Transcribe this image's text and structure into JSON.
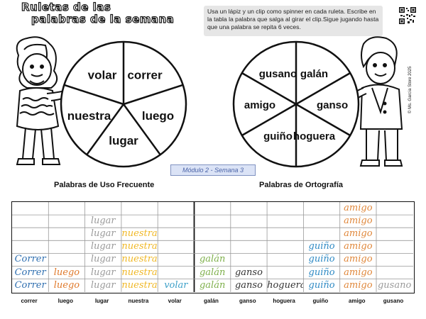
{
  "title": {
    "line1": "Ruletas de las",
    "line2": "palabras de la semana"
  },
  "instructions": "Usa un lápiz y un clip como spinner en cada ruleta. Escribe en la tabla la palabra que salga al girar el clip.Sigue jugando hasta que una palabra se repita 6 veces.",
  "copyright": "© Ms. García Store 2025",
  "badge": "Módulo 2 - Semana 3",
  "headings": {
    "left": "Palabras de Uso Frecuente",
    "right": "Palabras de Ortografía"
  },
  "spinner_left": {
    "labels": [
      "correr",
      "luego",
      "lugar",
      "nuestra",
      "volar"
    ]
  },
  "spinner_right": {
    "labels": [
      "galán",
      "ganso",
      "hoguera",
      "guiño",
      "amigo",
      "gusano"
    ]
  },
  "columns": [
    "correr",
    "luego",
    "lugar",
    "nuestra",
    "volar",
    "galán",
    "ganso",
    "hoguera",
    "guiño",
    "amigo",
    "gusano"
  ],
  "colors": {
    "correr": "#2f6fb0",
    "luego": "#e07a2c",
    "lugar": "#9a9a9a",
    "nuestra": "#f0b826",
    "volar": "#3da0c8",
    "galan": "#7fb04c",
    "ganso": "#333333",
    "hoguera": "#333333",
    "guino": "#2f8ac4",
    "amigo": "#e0883c",
    "gusano": "#9a9a9a"
  },
  "table_rows": [
    [
      "",
      "",
      "",
      "",
      "",
      "",
      "",
      "",
      "",
      "amigo",
      ""
    ],
    [
      "",
      "",
      "lugar",
      "",
      "",
      "",
      "",
      "",
      "",
      "amigo",
      ""
    ],
    [
      "",
      "",
      "lugar",
      "nuestra",
      "",
      "",
      "",
      "",
      "",
      "amigo",
      ""
    ],
    [
      "",
      "",
      "lugar",
      "nuestra",
      "",
      "",
      "",
      "",
      "guiño",
      "amigo",
      ""
    ],
    [
      "Correr",
      "",
      "lugar",
      "nuestra",
      "",
      "galán",
      "",
      "",
      "guiño",
      "amigo",
      ""
    ],
    [
      "Correr",
      "luego",
      "lugar",
      "nuestra",
      "",
      "galán",
      "ganso",
      "",
      "guiño",
      "amigo",
      ""
    ],
    [
      "Correr",
      "luego",
      "lugar",
      "nuestra",
      "volar",
      "galán",
      "ganso",
      "hoguera",
      "guiño",
      "amigo",
      "gusano"
    ]
  ]
}
